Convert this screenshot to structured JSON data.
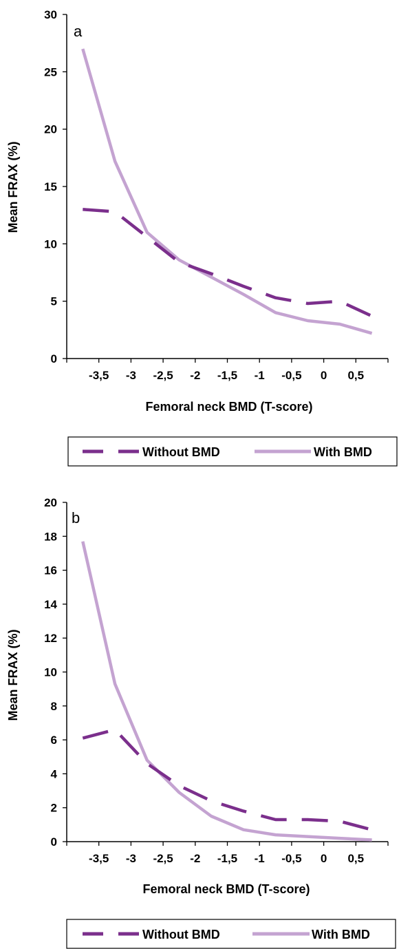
{
  "colors": {
    "without_bmd": "#7b2f8c",
    "with_bmd": "#c4a3d1",
    "axis": "#000000"
  },
  "chart_data": [
    {
      "type": "line",
      "panel_label": "a",
      "xlabel": "Femoral neck BMD (T-score)",
      "ylabel": "Mean FRAX (%)",
      "xticks": [
        "-3,5",
        "-3",
        "-2,5",
        "-2",
        "-1,5",
        "-1",
        "-0,5",
        "0",
        "0,5"
      ],
      "yticks": [
        "0",
        "5",
        "10",
        "15",
        "20",
        "25",
        "30"
      ],
      "ylim": [
        0,
        30
      ],
      "x": [
        -3.75,
        -3.25,
        -2.75,
        -2.25,
        -1.75,
        -1.25,
        -0.75,
        -0.25,
        0.25,
        0.75
      ],
      "series": [
        {
          "name": "Without BMD",
          "style": "dashed",
          "values": [
            13.0,
            12.8,
            10.6,
            8.4,
            7.4,
            6.3,
            5.3,
            4.8,
            5.0,
            3.7
          ]
        },
        {
          "name": "With BMD",
          "style": "solid",
          "values": [
            27.0,
            17.2,
            11.0,
            8.6,
            7.1,
            5.6,
            4.0,
            3.3,
            3.0,
            2.2
          ]
        }
      ],
      "legend_position": "bottom",
      "grid": false
    },
    {
      "type": "line",
      "panel_label": "b",
      "xlabel": "Femoral neck BMD (T-score)",
      "ylabel": "Mean FRAX (%)",
      "xticks": [
        "-3,5",
        "-3",
        "-2,5",
        "-2",
        "-1,5",
        "-1",
        "-0,5",
        "0",
        "0,5"
      ],
      "yticks": [
        "0",
        "2",
        "4",
        "6",
        "8",
        "10",
        "12",
        "14",
        "16",
        "18",
        "20"
      ],
      "ylim": [
        0,
        20
      ],
      "x": [
        -3.75,
        -3.25,
        -2.75,
        -2.25,
        -1.75,
        -1.25,
        -0.75,
        -0.25,
        0.25,
        0.75
      ],
      "series": [
        {
          "name": "Without BMD",
          "style": "dashed",
          "values": [
            6.1,
            6.6,
            4.6,
            3.3,
            2.4,
            1.8,
            1.3,
            1.3,
            1.2,
            0.7
          ]
        },
        {
          "name": "With BMD",
          "style": "solid",
          "values": [
            17.7,
            9.3,
            4.8,
            2.9,
            1.5,
            0.7,
            0.4,
            0.3,
            0.2,
            0.1
          ]
        }
      ],
      "legend_position": "bottom",
      "grid": false
    }
  ]
}
